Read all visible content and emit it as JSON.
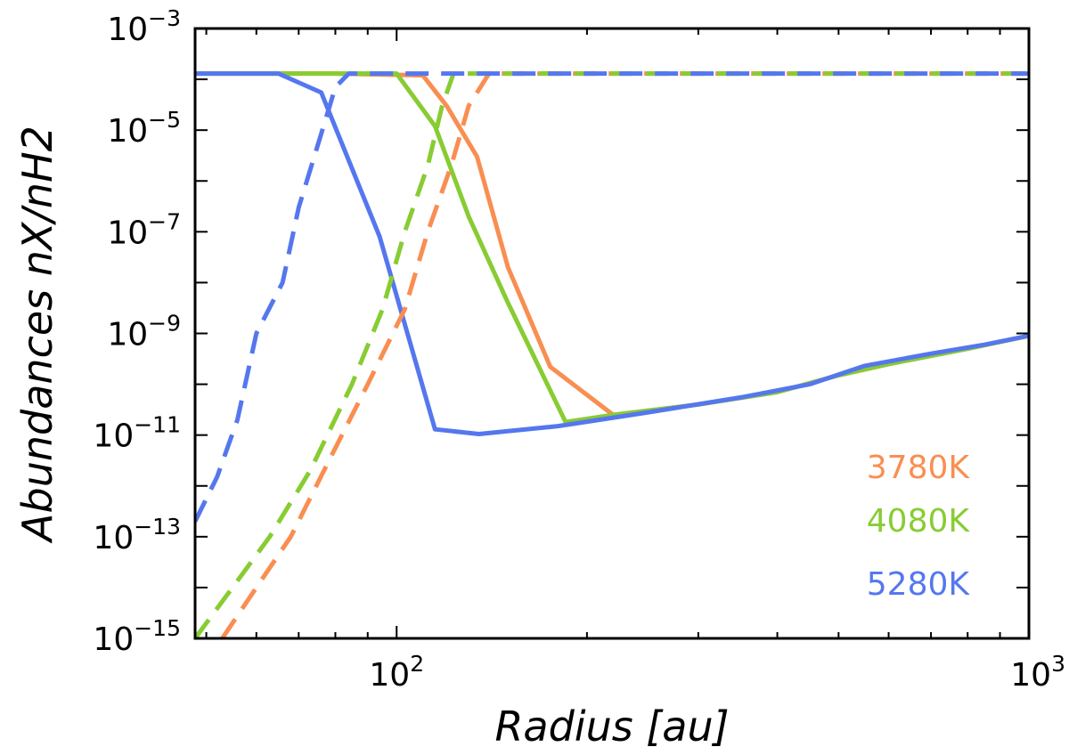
{
  "chart_data": {
    "type": "line",
    "title": "",
    "xlabel": "Radius [au]",
    "ylabel": "Abundances nX/nH2",
    "xscale": "log",
    "yscale": "log",
    "xlim": [
      48,
      1000
    ],
    "ylim": [
      1e-15,
      0.001
    ],
    "grid": false,
    "legend_placement": "bottom-right",
    "x_ticks": [
      {
        "value": 100,
        "base": "10",
        "exp": "2"
      },
      {
        "value": 1000,
        "base": "10",
        "exp": "3"
      }
    ],
    "y_ticks": [
      {
        "value": 0.001,
        "base": "10",
        "exp": "−3"
      },
      {
        "value": 1e-05,
        "base": "10",
        "exp": "−5"
      },
      {
        "value": 1e-07,
        "base": "10",
        "exp": "−7"
      },
      {
        "value": 1e-09,
        "base": "10",
        "exp": "−9"
      },
      {
        "value": 1e-11,
        "base": "10",
        "exp": "−11"
      },
      {
        "value": 1e-13,
        "base": "10",
        "exp": "−13"
      },
      {
        "value": 1e-15,
        "base": "10",
        "exp": "−15"
      }
    ],
    "series": [
      {
        "name": "3780K",
        "color": "#f98e52",
        "style": "solid",
        "points": [
          [
            48,
            0.00013
          ],
          [
            80,
            0.00013
          ],
          [
            110,
            0.00012
          ],
          [
            120,
            3e-05
          ],
          [
            134,
            3e-06
          ],
          [
            150,
            2e-08
          ],
          [
            175,
            2.2e-10
          ],
          [
            220,
            2.5e-11
          ],
          [
            300,
            4e-11
          ],
          [
            400,
            7e-11
          ],
          [
            500,
            1.5e-10
          ],
          [
            600,
            2.5e-10
          ],
          [
            800,
            5e-10
          ],
          [
            1000,
            9e-10
          ]
        ]
      },
      {
        "name": "4080K",
        "color": "#88cc33",
        "style": "solid",
        "points": [
          [
            48,
            0.00013
          ],
          [
            70,
            0.00013
          ],
          [
            100,
            0.00013
          ],
          [
            115,
            1.2e-05
          ],
          [
            130,
            2e-07
          ],
          [
            150,
            4e-09
          ],
          [
            185,
            1.8e-11
          ],
          [
            220,
            2.5e-11
          ],
          [
            300,
            4e-11
          ],
          [
            400,
            7e-11
          ],
          [
            500,
            1.5e-10
          ],
          [
            600,
            2.5e-10
          ],
          [
            800,
            5e-10
          ],
          [
            1000,
            9e-10
          ]
        ]
      },
      {
        "name": "5280K",
        "color": "#5577ee",
        "style": "solid",
        "points": [
          [
            48,
            0.00013
          ],
          [
            65,
            0.00013
          ],
          [
            76,
            5.5e-05
          ],
          [
            94,
            8e-08
          ],
          [
            115,
            1.3e-11
          ],
          [
            135,
            1.05e-11
          ],
          [
            180,
            1.5e-11
          ],
          [
            250,
            2.8e-11
          ],
          [
            350,
            5.5e-11
          ],
          [
            450,
            1e-10
          ],
          [
            550,
            2.3e-10
          ],
          [
            700,
            4e-10
          ],
          [
            850,
            6e-10
          ],
          [
            1000,
            9e-10
          ]
        ]
      },
      {
        "name": "3780K",
        "color": "#f98e52",
        "style": "dashed",
        "points": [
          [
            53,
            1e-15
          ],
          [
            60,
            1e-14
          ],
          [
            68,
            1e-13
          ],
          [
            78,
            3e-12
          ],
          [
            90,
            1e-10
          ],
          [
            103,
            3e-09
          ],
          [
            112,
            1e-07
          ],
          [
            122,
            2e-06
          ],
          [
            130,
            3e-05
          ],
          [
            140,
            0.00013
          ],
          [
            1000,
            0.00013
          ]
        ]
      },
      {
        "name": "4080K",
        "color": "#88cc33",
        "style": "dashed",
        "points": [
          [
            48,
            1e-15
          ],
          [
            55,
            1e-14
          ],
          [
            63,
            1e-13
          ],
          [
            73,
            2e-12
          ],
          [
            85,
            1e-10
          ],
          [
            95,
            3e-09
          ],
          [
            103,
            1e-07
          ],
          [
            112,
            2e-06
          ],
          [
            118,
            3e-05
          ],
          [
            123,
            0.00013
          ],
          [
            1000,
            0.00013
          ]
        ]
      },
      {
        "name": "5280K",
        "color": "#5577ee",
        "style": "dashed",
        "points": [
          [
            48,
            2e-13
          ],
          [
            52,
            1.5e-12
          ],
          [
            56,
            2e-11
          ],
          [
            60,
            1e-09
          ],
          [
            66,
            1e-08
          ],
          [
            70,
            3e-07
          ],
          [
            75,
            5e-06
          ],
          [
            80,
            7e-05
          ],
          [
            84,
            0.00013
          ],
          [
            1000,
            0.00013
          ]
        ]
      }
    ],
    "legend": [
      {
        "label": "3780K",
        "color": "#f98e52"
      },
      {
        "label": "4080K",
        "color": "#88cc33"
      },
      {
        "label": "5280K",
        "color": "#5577ee"
      }
    ]
  }
}
